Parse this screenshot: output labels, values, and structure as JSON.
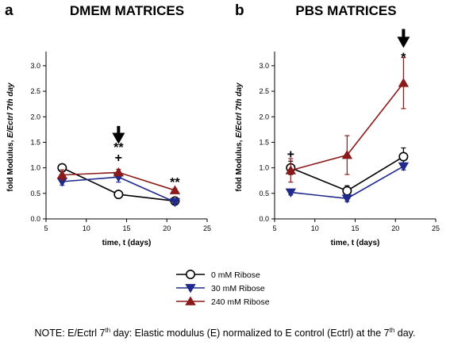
{
  "chart_data": [
    {
      "type": "line",
      "panel_label": "a",
      "title": "DMEM MATRICES",
      "xlabel": "time, t (days)",
      "ylabel_plain": "fold Modulus, ",
      "ylabel_italic": "E/Ectrl 7th day",
      "xlim": [
        5,
        25
      ],
      "ylim": [
        0.0,
        3.2
      ],
      "xticks": [
        5,
        10,
        15,
        20,
        25
      ],
      "yticks": [
        0.0,
        0.5,
        1.0,
        1.5,
        2.0,
        2.5,
        3.0
      ],
      "ytick_labels": [
        "0.0",
        "0.5",
        "1.0",
        "1.5",
        "2.0",
        "2.5",
        "3.0"
      ],
      "x": [
        7,
        14,
        21
      ],
      "series": [
        {
          "name": "0 mM Ribose",
          "values": [
            1.0,
            0.48,
            0.35
          ],
          "errors": [
            0.03,
            0.05,
            0.03
          ],
          "color": "#000000",
          "marker": "circle-open"
        },
        {
          "name": "30 mM Ribose",
          "values": [
            0.73,
            0.82,
            0.33
          ],
          "errors": [
            0.07,
            0.1,
            0.03
          ],
          "color": "#1f2a8c",
          "marker": "triangle-down"
        },
        {
          "name": "240 mM Ribose",
          "values": [
            0.86,
            0.91,
            0.56
          ],
          "errors": [
            0.1,
            0.06,
            0.03
          ],
          "color": "#8b1a1a",
          "marker": "triangle-up"
        }
      ],
      "annotations": [
        {
          "x": 14,
          "y": 1.21,
          "text": "+"
        },
        {
          "x": 14,
          "y": 1.41,
          "text": "**"
        },
        {
          "x": 21,
          "y": 0.73,
          "text": "**"
        }
      ],
      "arrow_at_x": 14,
      "arrow_y_range": [
        1.82,
        1.5
      ],
      "grid": false
    },
    {
      "type": "line",
      "panel_label": "b",
      "title": "PBS MATRICES",
      "xlabel": "time, t (days)",
      "ylabel_plain": "fold Modulus, ",
      "ylabel_italic": "E/Ectrl 7th day",
      "xlim": [
        5,
        25
      ],
      "ylim": [
        0.0,
        3.2
      ],
      "xticks": [
        5,
        10,
        15,
        20,
        25
      ],
      "yticks": [
        0.0,
        0.5,
        1.0,
        1.5,
        2.0,
        2.5,
        3.0
      ],
      "ytick_labels": [
        "0.0",
        "0.5",
        "1.0",
        "1.5",
        "2.0",
        "2.5",
        "3.0"
      ],
      "x": [
        7,
        14,
        21
      ],
      "series": [
        {
          "name": "0 mM Ribose",
          "values": [
            1.0,
            0.55,
            1.22
          ],
          "errors": [
            0.13,
            0.1,
            0.17
          ],
          "color": "#000000",
          "marker": "circle-open"
        },
        {
          "name": "30 mM Ribose",
          "values": [
            0.52,
            0.4,
            1.03
          ],
          "errors": [
            0.05,
            0.06,
            0.07
          ],
          "color": "#1f2a8c",
          "marker": "triangle-down"
        },
        {
          "name": "240 mM Ribose",
          "values": [
            0.95,
            1.25,
            2.66
          ],
          "errors": [
            0.23,
            0.38,
            0.5
          ],
          "color": "#8b1a1a",
          "marker": "triangle-up"
        }
      ],
      "annotations": [
        {
          "x": 7,
          "y": 1.28,
          "text": "+"
        },
        {
          "x": 21,
          "y": 3.18,
          "text": "*"
        }
      ],
      "arrow_at_x": 21,
      "arrow_y_range": [
        3.72,
        3.38
      ],
      "grid": false
    }
  ],
  "legend": {
    "items": [
      "0 mM Ribose",
      "30 mM Ribose",
      "240 mM Ribose"
    ]
  },
  "note": {
    "before_sup": "NOTE: E/Ectrl 7",
    "sup": "th",
    "after_sup": " day: Elastic modulus (E) normalized to E control (Ectrl) at the 7",
    "sup2": "th",
    "after_sup2": " day."
  }
}
